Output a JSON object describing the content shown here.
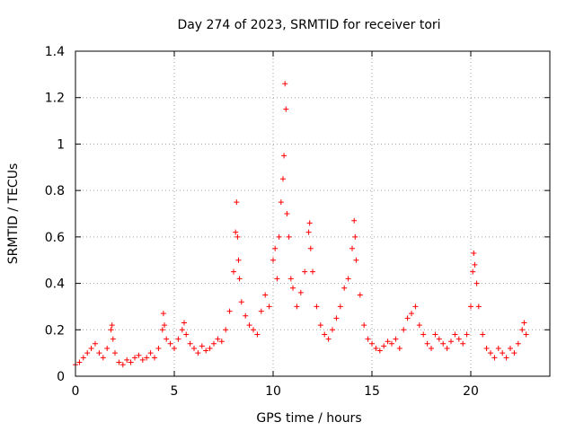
{
  "chart_data": {
    "type": "scatter",
    "title": "Day 274 of 2023, SRMTID for receiver tori",
    "xlabel": "GPS time / hours",
    "ylabel": "SRMTID / TECUs",
    "xlim": [
      0,
      24
    ],
    "ylim": [
      0,
      1.4
    ],
    "xticks": [
      0,
      5,
      10,
      15,
      20
    ],
    "xtick_labels": [
      "0",
      "5",
      "10",
      "15",
      "20"
    ],
    "yticks": [
      0,
      0.2,
      0.4,
      0.6,
      0.8,
      1.0,
      1.2,
      1.4
    ],
    "ytick_labels": [
      "0",
      "0.2",
      "0.4",
      "0.6",
      "0.8",
      "1",
      "1.2",
      "1.4"
    ],
    "grid": true,
    "marker": "+",
    "color": "#ff0000",
    "series": [
      {
        "name": "SRMTID",
        "x": [
          0.0,
          0.2,
          0.4,
          0.6,
          0.8,
          1.0,
          1.2,
          1.4,
          1.6,
          1.8,
          1.85,
          1.9,
          2.0,
          2.2,
          2.4,
          2.6,
          2.8,
          3.0,
          3.2,
          3.4,
          3.6,
          3.8,
          4.0,
          4.2,
          4.4,
          4.45,
          4.5,
          4.6,
          4.8,
          5.0,
          5.2,
          5.4,
          5.5,
          5.6,
          5.8,
          6.0,
          6.2,
          6.4,
          6.6,
          6.8,
          7.0,
          7.2,
          7.4,
          7.6,
          7.8,
          8.0,
          8.1,
          8.15,
          8.2,
          8.25,
          8.3,
          8.4,
          8.6,
          8.8,
          9.0,
          9.2,
          9.4,
          9.6,
          9.8,
          10.0,
          10.1,
          10.2,
          10.3,
          10.4,
          10.5,
          10.55,
          10.6,
          10.65,
          10.7,
          10.8,
          10.9,
          11.0,
          11.2,
          11.4,
          11.6,
          11.8,
          11.85,
          11.9,
          12.0,
          12.2,
          12.4,
          12.6,
          12.8,
          13.0,
          13.2,
          13.4,
          13.6,
          13.8,
          14.0,
          14.1,
          14.15,
          14.2,
          14.4,
          14.6,
          14.8,
          15.0,
          15.2,
          15.4,
          15.6,
          15.8,
          16.0,
          16.2,
          16.4,
          16.6,
          16.8,
          17.0,
          17.2,
          17.4,
          17.6,
          17.8,
          18.0,
          18.2,
          18.4,
          18.6,
          18.8,
          19.0,
          19.2,
          19.4,
          19.6,
          19.8,
          20.0,
          20.1,
          20.15,
          20.2,
          20.3,
          20.4,
          20.6,
          20.8,
          21.0,
          21.2,
          21.4,
          21.6,
          21.8,
          22.0,
          22.2,
          22.4,
          22.6,
          22.7,
          22.8
        ],
        "y": [
          0.05,
          0.06,
          0.08,
          0.1,
          0.12,
          0.14,
          0.1,
          0.08,
          0.12,
          0.2,
          0.22,
          0.16,
          0.1,
          0.06,
          0.05,
          0.07,
          0.06,
          0.08,
          0.09,
          0.07,
          0.08,
          0.1,
          0.08,
          0.12,
          0.2,
          0.27,
          0.22,
          0.16,
          0.14,
          0.12,
          0.16,
          0.2,
          0.23,
          0.18,
          0.14,
          0.12,
          0.1,
          0.13,
          0.11,
          0.12,
          0.14,
          0.16,
          0.15,
          0.2,
          0.28,
          0.45,
          0.62,
          0.75,
          0.6,
          0.5,
          0.42,
          0.32,
          0.26,
          0.22,
          0.2,
          0.18,
          0.28,
          0.35,
          0.3,
          0.5,
          0.55,
          0.42,
          0.6,
          0.75,
          0.85,
          0.95,
          1.26,
          1.15,
          0.7,
          0.6,
          0.42,
          0.38,
          0.3,
          0.36,
          0.45,
          0.62,
          0.66,
          0.55,
          0.45,
          0.3,
          0.22,
          0.18,
          0.16,
          0.2,
          0.25,
          0.3,
          0.38,
          0.42,
          0.55,
          0.67,
          0.6,
          0.5,
          0.35,
          0.22,
          0.16,
          0.14,
          0.12,
          0.11,
          0.13,
          0.15,
          0.14,
          0.16,
          0.12,
          0.2,
          0.25,
          0.27,
          0.3,
          0.22,
          0.18,
          0.14,
          0.12,
          0.18,
          0.16,
          0.14,
          0.12,
          0.15,
          0.18,
          0.16,
          0.14,
          0.18,
          0.3,
          0.45,
          0.53,
          0.48,
          0.4,
          0.3,
          0.18,
          0.12,
          0.1,
          0.08,
          0.12,
          0.1,
          0.08,
          0.12,
          0.1,
          0.14,
          0.2,
          0.23,
          0.18
        ]
      }
    ]
  }
}
